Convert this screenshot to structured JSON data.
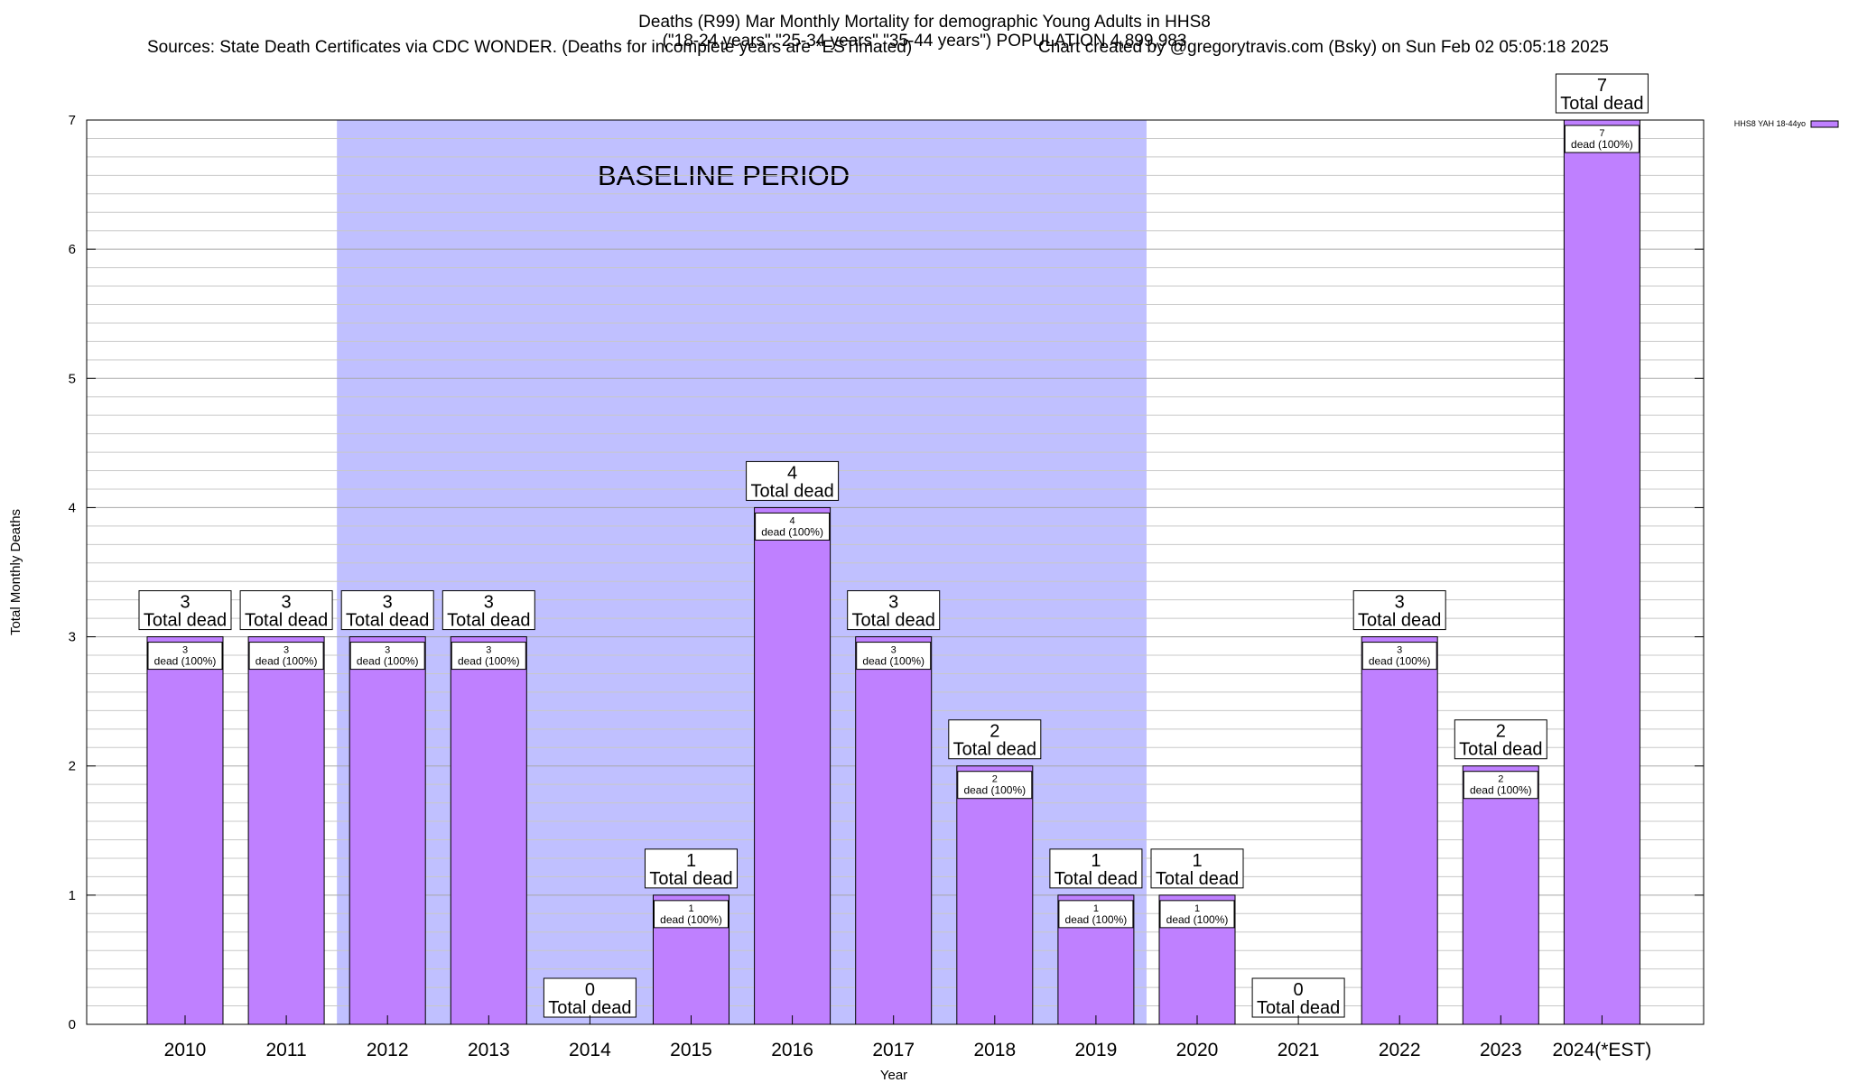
{
  "chart_data": {
    "type": "bar",
    "title": "Deaths (R99) Mar Monthly Mortality for demographic Young Adults in HHS8",
    "subtitle": "(\"18-24 years\",\"25-34 years\",\"35-44 years\") POPULATION 4,899,983",
    "sources": "Sources: State Death Certificates via CDC WONDER. (Deaths for incomplete years are *ESTimated)",
    "credit": "Chart created by @gregorytravis.com (Bsky) on Sun Feb 02 05:05:18 2025",
    "xlabel": "Year",
    "ylabel": "Total Monthly Deaths",
    "ylim": [
      0,
      7
    ],
    "yticks": [
      "0",
      "1",
      "2",
      "3",
      "4",
      "5",
      "6",
      "7"
    ],
    "categories": [
      "2010",
      "2011",
      "2012",
      "2013",
      "2014",
      "2015",
      "2016",
      "2017",
      "2018",
      "2019",
      "2020",
      "2021",
      "2022",
      "2023",
      "2024(*EST)"
    ],
    "series": [
      {
        "name": "HHS8 YAH 18-44yo",
        "values": [
          3,
          3,
          3,
          3,
          0,
          1,
          4,
          3,
          2,
          1,
          1,
          0,
          3,
          2,
          7
        ]
      }
    ],
    "top_label_suffix": "Total dead",
    "inner_label_suffix": "dead (100%)",
    "baseline": {
      "label": "BASELINE PERIOD",
      "from": "2012",
      "to": "2019"
    },
    "legend_position": "top-right",
    "grid": true,
    "colors": {
      "bar": "#bf80ff",
      "baseline": "#c0c0ff",
      "grid": "#c8c8c8"
    }
  }
}
